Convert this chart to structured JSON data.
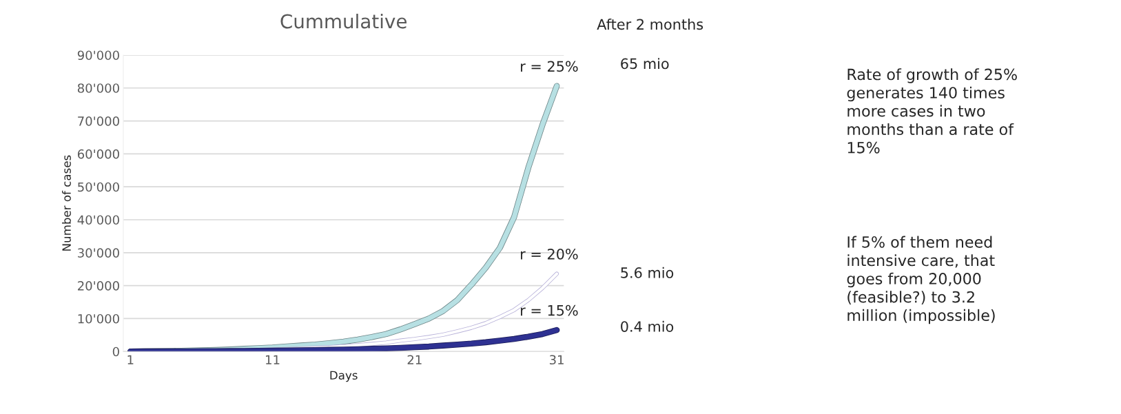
{
  "chart_data": {
    "type": "line",
    "title": "Cummulative",
    "xlabel": "Days",
    "ylabel": "Number of cases",
    "x": [
      1,
      2,
      3,
      4,
      5,
      6,
      7,
      8,
      9,
      10,
      11,
      12,
      13,
      14,
      15,
      16,
      17,
      18,
      19,
      20,
      21,
      22,
      23,
      24,
      25,
      26,
      27,
      28,
      29,
      30,
      31
    ],
    "series": [
      {
        "name": "r = 25%",
        "color": "#b7e0e3",
        "values": [
          0,
          50,
          100,
          150,
          250,
          350,
          450,
          600,
          800,
          1000,
          1200,
          1500,
          1800,
          2100,
          2500,
          3000,
          3600,
          4400,
          5300,
          6700,
          8300,
          10000,
          12300,
          15600,
          20300,
          25400,
          31500,
          40800,
          55800,
          68900,
          80600
        ]
      },
      {
        "name": "r = 20%",
        "color": "#ffffff",
        "values": [
          0,
          30,
          60,
          100,
          150,
          200,
          250,
          300,
          400,
          500,
          600,
          750,
          900,
          1100,
          1300,
          1600,
          1900,
          2300,
          2700,
          3300,
          3800,
          4400,
          5100,
          6100,
          7200,
          8600,
          10500,
          12600,
          15600,
          19300,
          23600
        ]
      },
      {
        "name": "r = 15%",
        "color": "#2e3192",
        "values": [
          0,
          15,
          30,
          45,
          65,
          85,
          110,
          135,
          165,
          200,
          240,
          290,
          350,
          410,
          490,
          580,
          680,
          800,
          950,
          1100,
          1300,
          1500,
          1800,
          2100,
          2400,
          2800,
          3300,
          3800,
          4500,
          5300,
          6500
        ]
      }
    ],
    "xlim": [
      0.5,
      31.5
    ],
    "xticks": [
      1,
      11,
      21,
      31
    ],
    "ylim": [
      0,
      90000
    ],
    "yticks": [
      {
        "value": 0,
        "label": "0"
      },
      {
        "value": 10000,
        "label": "10'000"
      },
      {
        "value": 20000,
        "label": "20'000"
      },
      {
        "value": 30000,
        "label": "30'000"
      },
      {
        "value": 40000,
        "label": "40'000"
      },
      {
        "value": 50000,
        "label": "50'000"
      },
      {
        "value": 60000,
        "label": "60'000"
      },
      {
        "value": 70000,
        "label": "70'000"
      },
      {
        "value": 80000,
        "label": "80'000"
      },
      {
        "value": 90000,
        "label": "90'000"
      }
    ],
    "grid": "y",
    "legend": false,
    "marker": "none",
    "line_style": "solid",
    "annotations": [
      "After 2 months",
      "65 mio",
      "5.6 mio",
      "0.4 mio",
      "Rate of growth of 25%\ngenerates 140 times\nmore cases in two\nmonths than a rate of\n15%",
      "If 5% of them need\nintensive care, that\ngoes from 20,000\n(feasible?) to 3.2\nmillion (impossible)"
    ]
  }
}
